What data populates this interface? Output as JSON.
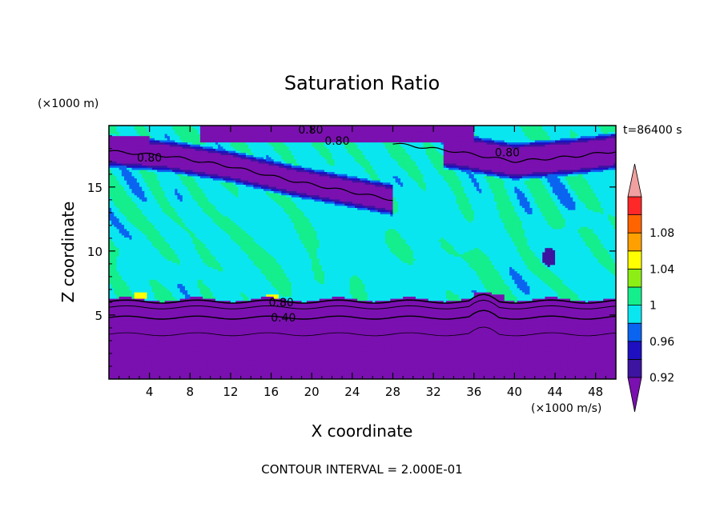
{
  "chart_data": {
    "type": "heatmap",
    "title": "Saturation Ratio",
    "xlabel": "X coordinate",
    "ylabel": "Z coordinate",
    "x_units": "(×1000 m/s)",
    "y_units": "(×1000 m)",
    "time_label": "t=86400 s",
    "footer": "CONTOUR INTERVAL = 2.000E-01",
    "xlim": [
      0,
      50
    ],
    "ylim": [
      0,
      19.8
    ],
    "x_ticks": [
      4,
      8,
      12,
      16,
      20,
      24,
      28,
      32,
      36,
      40,
      44,
      48
    ],
    "y_ticks": [
      5,
      10,
      15
    ],
    "colorbar": {
      "levels": [
        0.92,
        0.94,
        0.96,
        0.98,
        1.0,
        1.02,
        1.04,
        1.06,
        1.08,
        1.1
      ],
      "tick_labels": [
        "0.92",
        "0.96",
        "1",
        "1.04",
        "1.08"
      ],
      "colors": [
        "#3c14a0",
        "#1e10c0",
        "#0a64f0",
        "#0ae6f0",
        "#14ee8c",
        "#8cee14",
        "#ffff00",
        "#ffa000",
        "#ff6400",
        "#ff2828",
        "#f0a0a0"
      ],
      "under_color": "#7a10b0",
      "over_color": "#f0a0a0"
    },
    "contour_labels": [
      {
        "text": "0.80",
        "x": 19.9,
        "z": 19.5
      },
      {
        "text": "0.80",
        "x": 22.5,
        "z": 18.6
      },
      {
        "text": "0.80",
        "x": 39.3,
        "z": 17.7
      },
      {
        "text": "0.80",
        "x": 4.0,
        "z": 17.3
      },
      {
        "text": "0.80",
        "x": 17.0,
        "z": 6.0
      },
      {
        "text": "0.40",
        "x": 17.2,
        "z": 4.8
      }
    ]
  }
}
